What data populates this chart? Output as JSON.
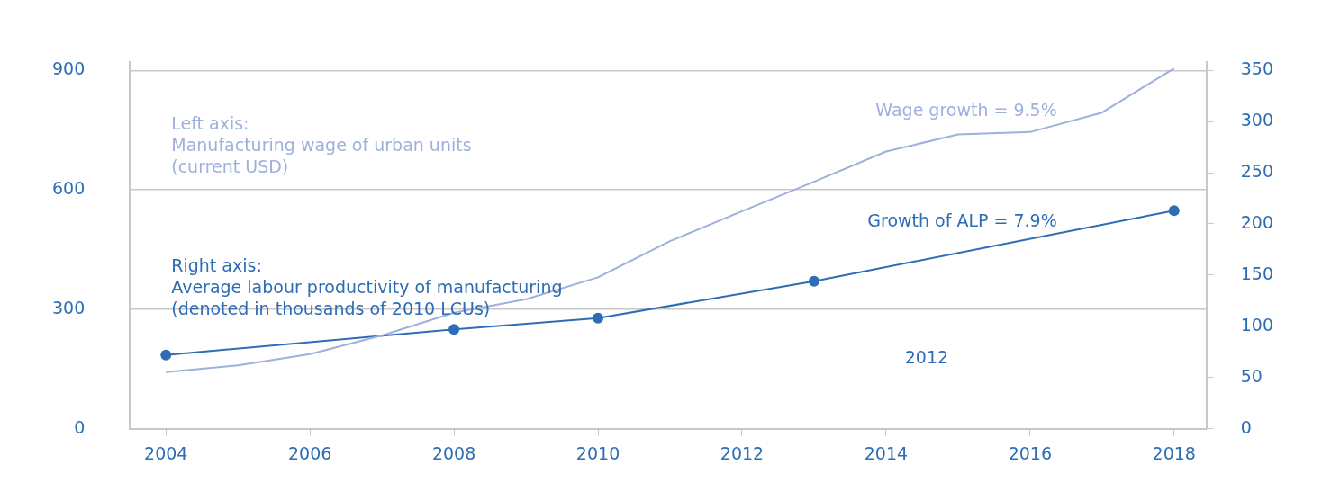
{
  "chart_data": {
    "type": "line",
    "series": [
      {
        "name": "Wage growth = 9.5%",
        "color": "#9fb0dc",
        "axis": "y",
        "marker": "none",
        "x": [
          2004,
          2005,
          2006,
          2007,
          2008,
          2009,
          2010,
          2011,
          2012,
          2013,
          2014,
          2015,
          2016,
          2017,
          2018
        ],
        "values": [
          142,
          159,
          187,
          234,
          291,
          325,
          380,
          471,
          546,
          620,
          696,
          739,
          745,
          794,
          905
        ]
      },
      {
        "name": "Growth of ALP = 7.9%",
        "color": "#2e6db5",
        "axis": "y2",
        "marker": "circle",
        "x": [
          2004,
          2008,
          2010,
          2013,
          2018
        ],
        "values": [
          72,
          97,
          108,
          144,
          213
        ]
      }
    ],
    "annotations": [
      "Left axis:\nManufacturing wage of urban units\n(current USD)",
      "Right axis:\nAverage labour productivity of manufacturing\n(denoted in thousands of 2010 LCUs)",
      "2012"
    ],
    "xlim": [
      2003.5,
      2018.45
    ],
    "xticks": [
      2004,
      2006,
      2008,
      2010,
      2012,
      2014,
      2016,
      2018
    ],
    "ylim": [
      0,
      920
    ],
    "yticks": [
      0,
      300,
      600,
      900
    ],
    "y2lim": [
      0,
      357.8
    ],
    "y2ticks": [
      0,
      50,
      100,
      150,
      200,
      250,
      300,
      350
    ],
    "grid": "y",
    "legend": false,
    "line_style": "solid"
  }
}
